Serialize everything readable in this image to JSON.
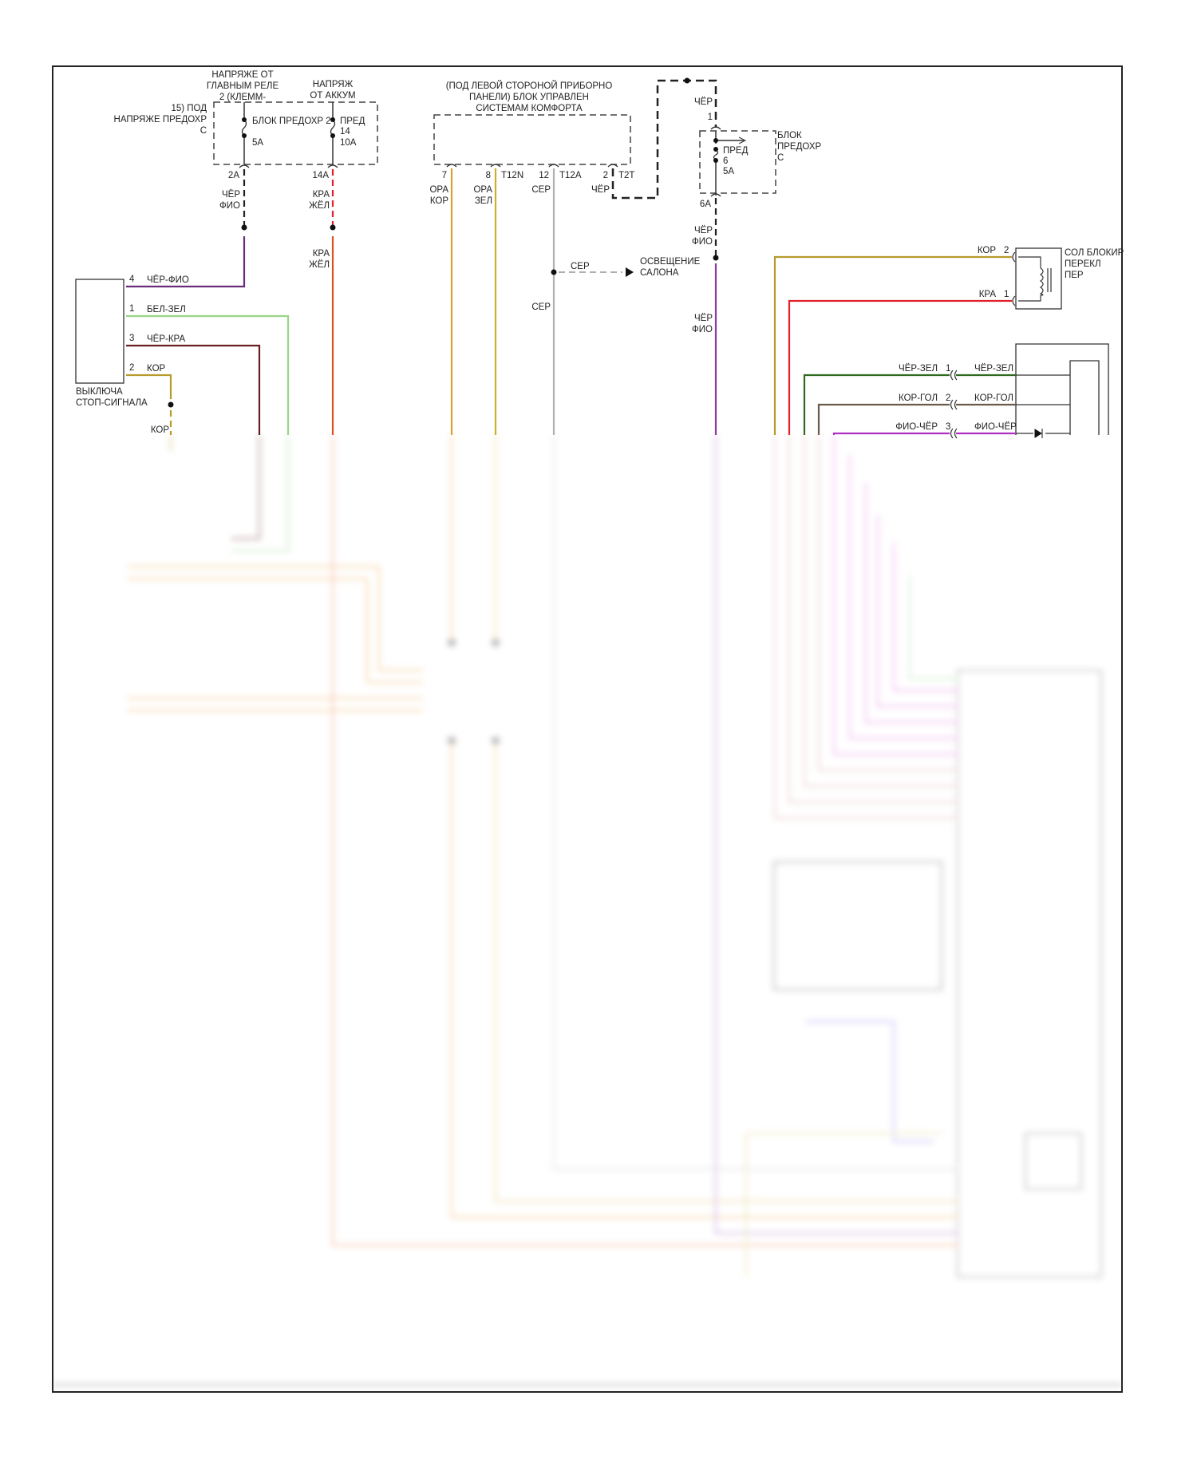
{
  "colors": {
    "black_violet": "#6a2c7a",
    "white_green": "#9bd48a",
    "black_red": "#6b1f1f",
    "brown": "#b59a2c",
    "red_yellow": "#d9531e",
    "orange_brown": "#d9a030",
    "orange_green": "#c8b030",
    "grey": "#b0b0b0",
    "red": "#e0202a",
    "black_green": "#2f6a1c",
    "brown_blue": "#6b5a4a",
    "violet_black": "#b030c0",
    "black": "#222222"
  },
  "fuse_left": {
    "label_main_relay": [
      "НАПРЯЖЕ ОТ",
      "ГЛАВНЫМ РЕЛЕ",
      "2 (КЛЕММ-"
    ],
    "label_battery": [
      "НАПРЯЖ",
      "ОТ АККУМ"
    ],
    "label_left": [
      "15) ПОД",
      "НАПРЯЖЕ ПРЕДОХР",
      "С"
    ],
    "block_label": "БЛОК ПРЕДОХР 2",
    "fuse1_rating": "5А",
    "fuse2_label": [
      "ПРЕД",
      "14",
      "10А"
    ],
    "pin_2a": "2А",
    "pin_14a": "14А",
    "wire_2a": [
      "ЧЁР",
      "ФИО"
    ],
    "wire_14a": [
      "КРА",
      "ЖЁЛ"
    ],
    "wire_14a_lower": [
      "КРА",
      "ЖЁЛ"
    ]
  },
  "stop_switch": {
    "label": [
      "ВЫКЛЮЧА",
      "СТОП-СИГНАЛА"
    ],
    "pins": [
      {
        "pin": "4",
        "wire": "ЧЁР-ФИО"
      },
      {
        "pin": "1",
        "wire": "БЕЛ-ЗЕЛ"
      },
      {
        "pin": "3",
        "wire": "ЧЁР-КРА"
      },
      {
        "pin": "2",
        "wire": "КОР"
      }
    ],
    "lower_wire": "КОР"
  },
  "comfort_module": {
    "label": [
      "(ПОД ЛЕВОЙ СТОРОНОЙ ПРИБОРНО",
      "ПАНЕЛИ) БЛОК УПРАВЛЕН",
      "СИСТЕМАМ КОМФОРТА"
    ],
    "pins": [
      {
        "pin": "7",
        "connector": "",
        "wire": [
          "ОРА",
          "КОР"
        ]
      },
      {
        "pin": "8",
        "connector": "T12N",
        "wire": [
          "ОРА",
          "ЗЕЛ"
        ]
      },
      {
        "pin": "12",
        "connector": "T12A",
        "wire": [
          "СЕР"
        ]
      },
      {
        "pin": "2",
        "connector": "T2T",
        "wire": [
          "ЧЁР"
        ]
      }
    ],
    "grey_branch_wire": "СЕР",
    "grey_lower_wire": "СЕР",
    "interior_light": [
      "ОСВЕЩЕНИЕ",
      "САЛОНА"
    ]
  },
  "fuse_right": {
    "top_wire": "ЧЁР",
    "top_pin": "1",
    "block_label": [
      "БЛОК",
      "ПРЕДОХР",
      "С"
    ],
    "fuse_label": [
      "ПРЕД",
      "6",
      "5А"
    ],
    "pin_6a": "6А",
    "wire_6a": [
      "ЧЁР",
      "ФИО"
    ],
    "wire_lower": [
      "ЧЁР",
      "ФИО"
    ]
  },
  "shift_lock_solenoid": {
    "label": [
      "СОЛ БЛОКИР",
      "ПЕРЕКЛ",
      "ПЕР"
    ],
    "pins": [
      {
        "wire": "КОР",
        "pin": "2"
      },
      {
        "wire": "КРА",
        "pin": "1"
      }
    ]
  },
  "selector_switch": {
    "rows": [
      {
        "wire_left": "ЧЁР-ЗЕЛ",
        "pin": "1",
        "wire_right": "ЧЁР-ЗЕЛ"
      },
      {
        "wire_left": "КОР-ГОЛ",
        "pin": "2",
        "wire_right": "КОР-ГОЛ"
      },
      {
        "wire_left": "ФИО-ЧЁР",
        "pin": "3",
        "wire_right": "ФИО-ЧЁР"
      }
    ]
  }
}
